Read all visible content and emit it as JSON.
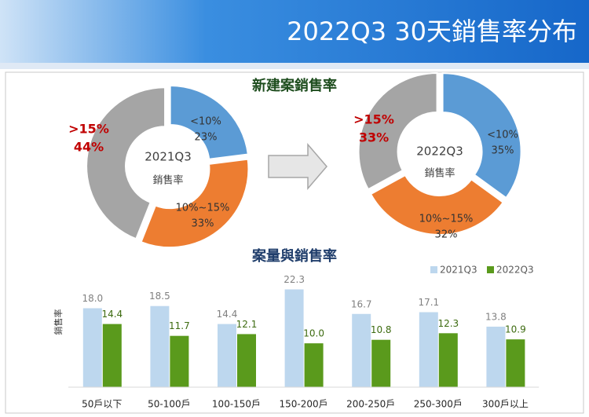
{
  "header": {
    "title": "2022Q3 30天銷售率分布"
  },
  "chart_data": [
    {
      "type": "donut",
      "title": "新建案銷售率",
      "center_label": [
        "2021Q3",
        "銷售率"
      ],
      "categories": [
        "<10%",
        "10%~15%",
        ">15%"
      ],
      "values": [
        23,
        33,
        44
      ],
      "value_labels": [
        "23%",
        "33%",
        "44%"
      ],
      "colors": [
        "#5b9bd5",
        "#ed7d31",
        "#a5a5a5"
      ],
      "highlight_color": "#c00000"
    },
    {
      "type": "donut",
      "center_label": [
        "2022Q3",
        "銷售率"
      ],
      "categories": [
        "<10%",
        "10%~15%",
        ">15%"
      ],
      "values": [
        35,
        32,
        33
      ],
      "value_labels": [
        "35%",
        "32%",
        "33%"
      ],
      "colors": [
        "#5b9bd5",
        "#ed7d31",
        "#a5a5a5"
      ],
      "highlight_color": "#c00000"
    },
    {
      "type": "bar",
      "title": "案量與銷售率",
      "y_label": "銷售率",
      "categories": [
        "50戶以下",
        "50-100戶",
        "100-150戶",
        "150-200戶",
        "200-250戶",
        "250-300戶",
        "300戶以上"
      ],
      "series": [
        {
          "name": "2021Q3",
          "color": "#bdd7ee",
          "label_color": "#808080",
          "values": [
            18.0,
            18.5,
            14.4,
            22.3,
            16.7,
            17.1,
            13.8
          ],
          "value_labels": [
            "18.0",
            "18.5",
            "14.4",
            "22.3",
            "16.7",
            "17.1",
            "13.8"
          ]
        },
        {
          "name": "2022Q3",
          "color": "#5a9a1c",
          "label_color": "#3d6b10",
          "values": [
            14.4,
            11.7,
            12.1,
            10.0,
            10.8,
            12.3,
            10.9
          ],
          "value_labels": [
            "14.4",
            "11.7",
            "12.1",
            "10.0",
            "10.8",
            "12.3",
            "10.9"
          ]
        }
      ],
      "ylim": [
        0,
        24
      ],
      "legend": "top-right"
    }
  ]
}
